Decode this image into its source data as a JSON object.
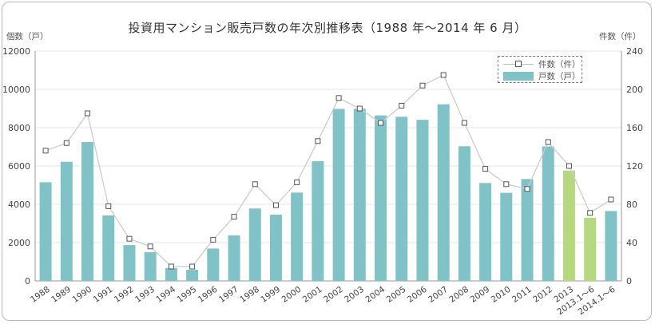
{
  "title": "投資用マンション販売戸数の年次別推移表（1988 年〜2014 年 6 月）",
  "left_axis_unit": "個数（戸）",
  "right_axis_unit": "件数（件）",
  "colors": {
    "bar": "#7fc3c6",
    "bar_highlight": "#b6d97f",
    "line": "#cccccc",
    "marker_border": "#555555",
    "grid": "#e6e6e6"
  },
  "chart_data": {
    "type": "bar",
    "categories": [
      "1988",
      "1989",
      "1990",
      "1991",
      "1992",
      "1993",
      "1994",
      "1995",
      "1996",
      "1997",
      "1998",
      "1999",
      "2000",
      "2001",
      "2002",
      "2003",
      "2004",
      "2005",
      "2006",
      "2007",
      "2008",
      "2009",
      "2010",
      "2011",
      "2012",
      "2013",
      "2013.1〜6",
      "2014.1〜6"
    ],
    "series": [
      {
        "name": "戸数（戸）",
        "axis": "left",
        "type": "bar",
        "values": [
          5150,
          6220,
          7250,
          3420,
          1870,
          1500,
          670,
          580,
          1690,
          2380,
          3780,
          3460,
          4610,
          6250,
          8980,
          8990,
          8640,
          8570,
          8410,
          9220,
          7030,
          5110,
          4600,
          5320,
          7020,
          5760,
          3300,
          3650
        ],
        "highlight_categories": [
          "2013",
          "2013.1〜6"
        ]
      },
      {
        "name": "件数（件）",
        "axis": "right",
        "type": "line",
        "values": [
          136,
          144,
          175,
          78,
          44,
          36,
          15,
          15,
          43,
          67,
          101,
          79,
          103,
          146,
          191,
          180,
          165,
          183,
          204,
          215,
          165,
          117,
          101,
          96,
          145,
          120,
          71,
          85
        ]
      }
    ],
    "left_axis": {
      "min": 0,
      "max": 12000,
      "ticks": [
        0,
        2000,
        4000,
        6000,
        8000,
        10000,
        12000
      ]
    },
    "right_axis": {
      "min": 0,
      "max": 240,
      "ticks": [
        0,
        40,
        80,
        120,
        160,
        200,
        240
      ]
    },
    "grid": true,
    "legend_position": "top-right"
  }
}
